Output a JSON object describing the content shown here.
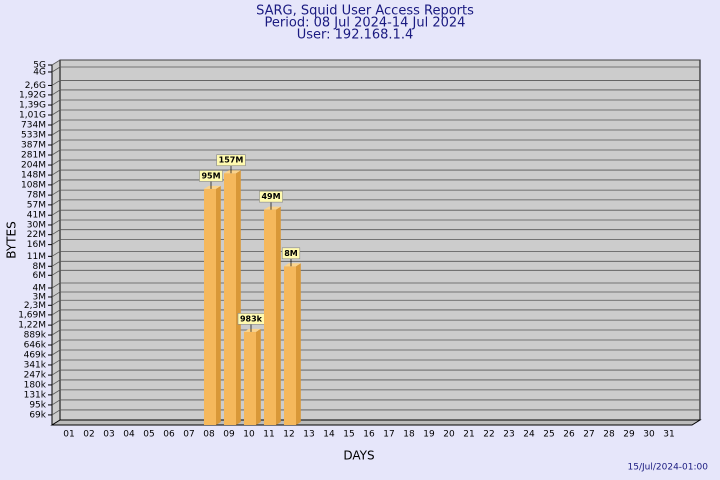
{
  "chart_data": {
    "type": "bar",
    "title": "SARG, Squid User Access Reports",
    "subtitles": [
      "Period: 08 Jul 2024-14 Jul 2024",
      "User: 192.168.1.4"
    ],
    "y_label": "BYTES",
    "x_label": "DAYS",
    "timestamp": "15/Jul/2024-01:00",
    "log_scale": true,
    "grid": true,
    "color": "#f5b85c",
    "categories": [
      "01",
      "02",
      "03",
      "04",
      "05",
      "06",
      "07",
      "08",
      "09",
      "10",
      "11",
      "12",
      "13",
      "14",
      "15",
      "16",
      "17",
      "18",
      "19",
      "20",
      "21",
      "22",
      "23",
      "24",
      "25",
      "26",
      "27",
      "28",
      "29",
      "30",
      "31"
    ],
    "values": [
      null,
      null,
      null,
      null,
      null,
      null,
      null,
      95000000,
      157000000,
      983000,
      49000000,
      8000000,
      null,
      null,
      null,
      null,
      null,
      null,
      null,
      null,
      null,
      null,
      null,
      null,
      null,
      null,
      null,
      null,
      null,
      null,
      null
    ],
    "value_labels": [
      null,
      null,
      null,
      null,
      null,
      null,
      null,
      "95M",
      "157M",
      "983k",
      "49M",
      "8M",
      null,
      null,
      null,
      null,
      null,
      null,
      null,
      null,
      null,
      null,
      null,
      null,
      null,
      null,
      null,
      null,
      null,
      null,
      null
    ],
    "ylim": [
      50000,
      5000000000
    ],
    "yticks": [
      {
        "value": 69000,
        "label": "69k"
      },
      {
        "value": 95000,
        "label": "95k"
      },
      {
        "value": 131000,
        "label": "131k"
      },
      {
        "value": 180000,
        "label": "180k"
      },
      {
        "value": 247000,
        "label": "247k"
      },
      {
        "value": 341000,
        "label": "341k"
      },
      {
        "value": 469000,
        "label": "469k"
      },
      {
        "value": 646000,
        "label": "646k"
      },
      {
        "value": 889000,
        "label": "889k"
      },
      {
        "value": 1220000,
        "label": "1,22M"
      },
      {
        "value": 1690000,
        "label": "1,69M"
      },
      {
        "value": 2300000,
        "label": "2,3M"
      },
      {
        "value": 3000000,
        "label": "3M"
      },
      {
        "value": 4000000,
        "label": "4M"
      },
      {
        "value": 6000000,
        "label": "6M"
      },
      {
        "value": 8000000,
        "label": "8M"
      },
      {
        "value": 11000000,
        "label": "11M"
      },
      {
        "value": 16000000,
        "label": "16M"
      },
      {
        "value": 22000000,
        "label": "22M"
      },
      {
        "value": 30000000,
        "label": "30M"
      },
      {
        "value": 41000000,
        "label": "41M"
      },
      {
        "value": 57000000,
        "label": "57M"
      },
      {
        "value": 78000000,
        "label": "78M"
      },
      {
        "value": 108000000,
        "label": "108M"
      },
      {
        "value": 148000000,
        "label": "148M"
      },
      {
        "value": 204000000,
        "label": "204M"
      },
      {
        "value": 281000000,
        "label": "281M"
      },
      {
        "value": 387000000,
        "label": "387M"
      },
      {
        "value": 533000000,
        "label": "533M"
      },
      {
        "value": 734000000,
        "label": "734M"
      },
      {
        "value": 1010000000,
        "label": "1,01G"
      },
      {
        "value": 1390000000,
        "label": "1,39G"
      },
      {
        "value": 1920000000,
        "label": "1,92G"
      },
      {
        "value": 2600000000,
        "label": "2,6G"
      },
      {
        "value": 4000000000,
        "label": "4G"
      },
      {
        "value": 5000000000,
        "label": "5G"
      }
    ]
  }
}
